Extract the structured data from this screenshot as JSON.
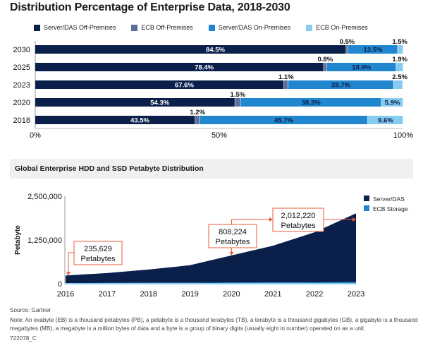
{
  "colors": {
    "server_das_off": "#0b1f4b",
    "ecb_off": "#5b6f99",
    "server_das_on": "#1f86cf",
    "ecb_on": "#86cbf0",
    "area_server": "#0b1f4b",
    "area_ecb": "#1f86cf",
    "annotation": "#e8593a"
  },
  "chart_data": [
    {
      "type": "bar",
      "orientation": "horizontal",
      "stacked": true,
      "title": "Distribution Percentage of Enterprise Data, 2018-2030",
      "categories": [
        "2030",
        "2025",
        "2023",
        "2020",
        "2018"
      ],
      "series": [
        {
          "name": "Server/DAS Off-Premises",
          "values": [
            84.5,
            78.4,
            67.6,
            54.3,
            43.5
          ],
          "labels": [
            "84.5%",
            "78.4%",
            "67.6%",
            "54.3%",
            "43.5%"
          ]
        },
        {
          "name": "ECB Off-Premises",
          "values": [
            0.5,
            0.8,
            1.1,
            1.5,
            1.2
          ],
          "labels": [
            "0.5%",
            "0.8%",
            "1.1%",
            "1.5%",
            "1.2%"
          ]
        },
        {
          "name": "Server/DAS On-Premises",
          "values": [
            13.5,
            18.9,
            28.7,
            38.3,
            45.7
          ],
          "labels": [
            "13.5%",
            "18.9%",
            "28.7%",
            "38.3%",
            "45.7%"
          ]
        },
        {
          "name": "ECB On-Premises",
          "values": [
            1.5,
            1.9,
            2.5,
            5.9,
            9.6
          ],
          "labels": [
            "1.5%",
            "1.9%",
            "2.5%",
            "5.9%",
            "9.6%"
          ]
        }
      ],
      "xlim": [
        0,
        100
      ],
      "xticks": [
        "0%",
        "50%",
        "100%"
      ],
      "legend": "top"
    },
    {
      "type": "area",
      "stacked": true,
      "title": "Global Enterprise HDD and SSD Petabyte Distribution",
      "x": [
        "2016",
        "2017",
        "2018",
        "2019",
        "2020",
        "2021",
        "2022",
        "2023"
      ],
      "series": [
        {
          "name": "ECB Storage",
          "values": [
            20000,
            22000,
            25000,
            28000,
            32000,
            36000,
            40000,
            45000
          ]
        },
        {
          "name": "Server/DAS",
          "values": [
            215629,
            283000,
            380000,
            500000,
            776224,
            1050000,
            1430000,
            1967220
          ]
        }
      ],
      "totals": [
        235629,
        305000,
        405000,
        528000,
        808224,
        1086000,
        1470000,
        2012220
      ],
      "ylabel": "Petabyte",
      "ylim": [
        0,
        2500000
      ],
      "yticks": [
        "0",
        "1,250,000",
        "2,500,000"
      ],
      "legend": "top-right",
      "annotations": [
        {
          "x": "2016",
          "value_label": "235,629",
          "unit_label": "Petabytes"
        },
        {
          "x": "2020",
          "value_label": "808,224",
          "unit_label": "Petabytes"
        },
        {
          "x": "2023",
          "value_label": "2,012,220",
          "unit_label": "Petabytes"
        }
      ]
    }
  ],
  "footer": {
    "source": "Source: Gartner",
    "note": "Note: An exabyte (EB) is a thousand petabytes (PB), a petabyte is a thousand terabytes (TB), a terabyte is a thousand gigabytes (GB), a gigabyte is a thousand megabytes (MB), a megabyte is a million bytes of data and a byte is a group of binary digits (usually eight in number) operated on as a unit.",
    "id": "722078_C"
  }
}
